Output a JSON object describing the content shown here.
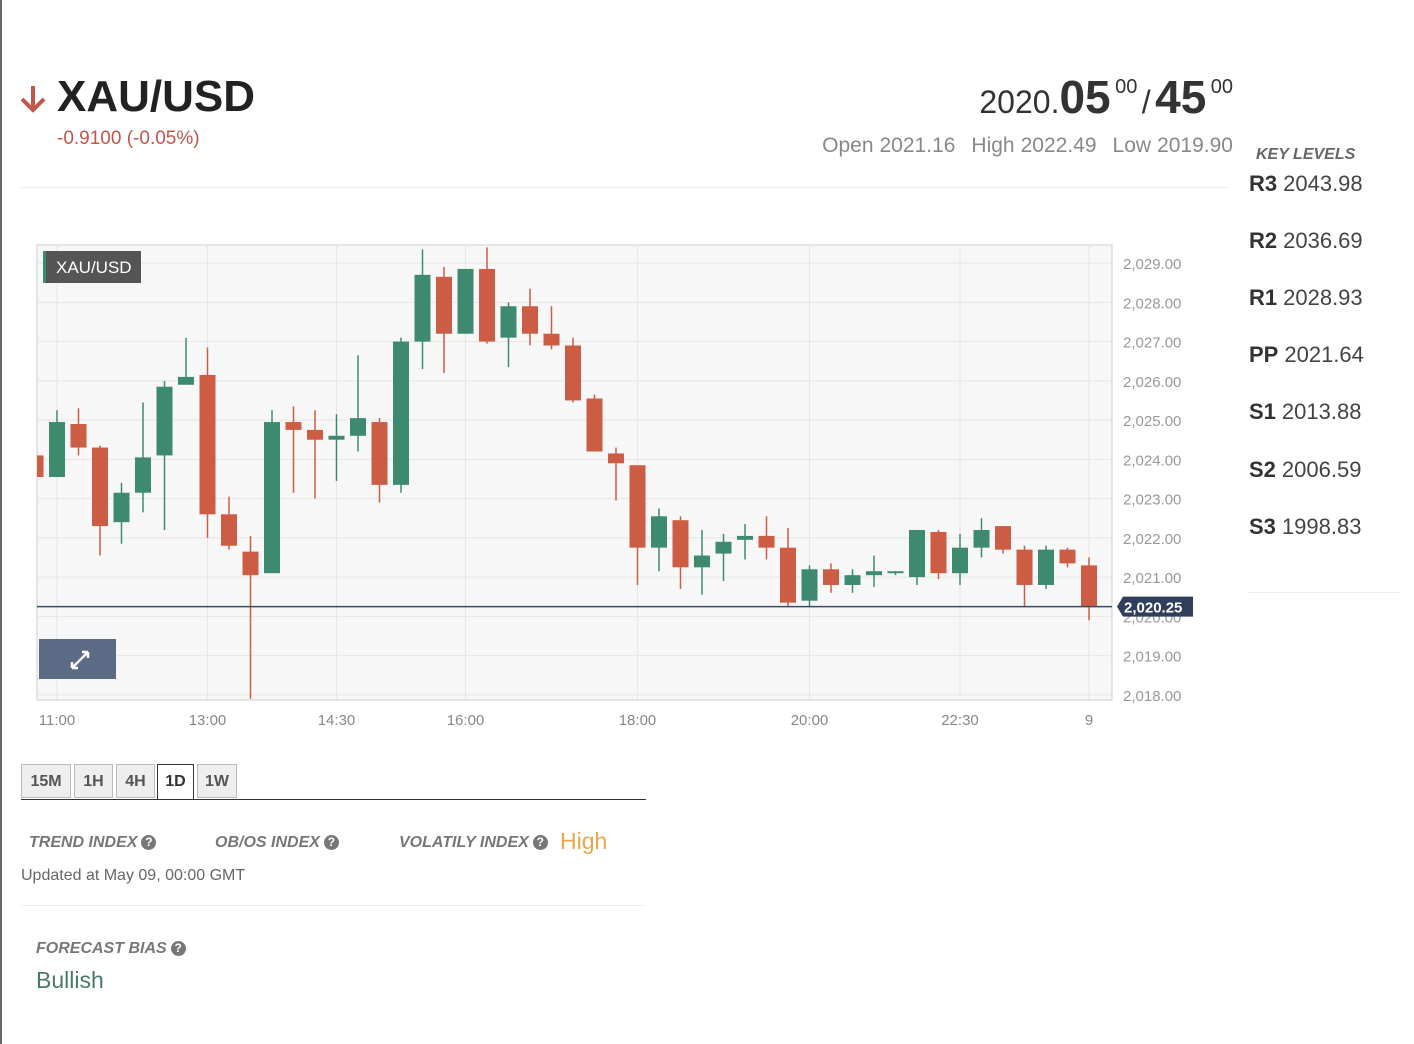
{
  "header": {
    "symbol": "XAU/USD",
    "change": "-0.9100 (-0.05%)",
    "price": {
      "big": "2020.",
      "bid": "05",
      "bid_sup": "00",
      "sep": "/",
      "ask": "45",
      "ask_sup": "00"
    },
    "ohl": [
      {
        "label": "Open",
        "value": "2021.16"
      },
      {
        "label": "High",
        "value": "2022.49"
      },
      {
        "label": "Low",
        "value": "2019.90"
      }
    ]
  },
  "key_levels": {
    "title": "KEY LEVELS",
    "levels": [
      {
        "name": "R3",
        "value": "2043.98"
      },
      {
        "name": "R2",
        "value": "2036.69"
      },
      {
        "name": "R1",
        "value": "2028.93"
      },
      {
        "name": "PP",
        "value": "2021.64"
      },
      {
        "name": "S1",
        "value": "2013.88"
      },
      {
        "name": "S2",
        "value": "2006.59"
      },
      {
        "name": "S3",
        "value": "1998.83"
      }
    ]
  },
  "tabs": [
    "15M",
    "1H",
    "4H",
    "1D",
    "1W"
  ],
  "active_tab": "1D",
  "indices": {
    "trend": "TREND INDEX",
    "obos": "OB/OS INDEX",
    "volatility": "VOLATILY INDEX",
    "volatility_value": "High",
    "updated": "Updated at May 09, 00:00 GMT"
  },
  "forecast": {
    "title": "FORECAST BIAS",
    "value": "Bullish"
  },
  "chart_data": {
    "type": "candlestick",
    "title": "XAU/USD",
    "categories": [
      null,
      "11:00",
      null,
      null,
      null,
      null,
      null,
      null,
      "13:00",
      null,
      null,
      null,
      null,
      null,
      "14:30",
      null,
      null,
      null,
      null,
      null,
      "16:00",
      null,
      null,
      null,
      null,
      null,
      null,
      null,
      "18:00",
      null,
      null,
      null,
      null,
      null,
      null,
      null,
      "20:00",
      null,
      null,
      null,
      null,
      null,
      null,
      "22:30",
      null,
      null,
      null,
      null,
      null,
      "9"
    ],
    "open": [
      2024.1,
      2023.55,
      2024.9,
      2024.3,
      2022.4,
      2023.15,
      2024.1,
      2025.9,
      2026.15,
      2022.6,
      2021.65,
      2021.1,
      2024.95,
      2024.75,
      2024.5,
      2024.6,
      2024.95,
      2023.35,
      2027.0,
      2028.65,
      2027.2,
      2028.85,
      2027.1,
      2027.9,
      2027.2,
      2026.9,
      2025.55,
      2024.15,
      2023.85,
      2021.75,
      2022.45,
      2021.25,
      2021.6,
      2021.95,
      2022.05,
      2021.75,
      2020.4,
      2021.2,
      2020.8,
      2021.05,
      2021.1,
      2021.0,
      2022.15,
      2021.1,
      2021.75,
      2022.3,
      2021.7,
      2020.8,
      2021.7,
      2021.3
    ],
    "high": [
      2025.5,
      2025.25,
      2025.3,
      2024.35,
      2023.4,
      2025.45,
      2026.0,
      2027.1,
      2026.85,
      2023.05,
      2022.05,
      2025.25,
      2025.35,
      2025.25,
      2025.15,
      2026.65,
      2025.05,
      2027.1,
      2029.35,
      2028.9,
      2028.85,
      2029.4,
      2028.0,
      2028.35,
      2027.9,
      2027.1,
      2025.65,
      2024.3,
      2023.85,
      2022.75,
      2022.55,
      2022.2,
      2022.1,
      2022.35,
      2022.55,
      2022.25,
      2021.3,
      2021.35,
      2021.2,
      2021.55,
      2021.15,
      2022.2,
      2022.2,
      2022.1,
      2022.5,
      2022.3,
      2021.8,
      2021.8,
      2021.75,
      2021.5
    ],
    "low": [
      2023.5,
      2023.55,
      2024.1,
      2021.55,
      2021.85,
      2022.65,
      2022.2,
      2025.9,
      2022.0,
      2021.7,
      2017.9,
      2021.1,
      2023.15,
      2023.0,
      2023.45,
      2024.2,
      2022.9,
      2023.15,
      2026.3,
      2026.2,
      2027.2,
      2026.95,
      2026.35,
      2026.9,
      2026.8,
      2025.45,
      2024.2,
      2022.95,
      2020.8,
      2021.15,
      2020.7,
      2020.55,
      2020.9,
      2021.45,
      2021.45,
      2020.25,
      2020.25,
      2020.6,
      2020.6,
      2020.75,
      2021.05,
      2020.8,
      2020.95,
      2020.8,
      2021.5,
      2021.6,
      2020.25,
      2020.7,
      2021.25,
      2019.9
    ],
    "close": [
      2023.55,
      2024.95,
      2024.3,
      2022.3,
      2023.15,
      2024.05,
      2025.85,
      2026.1,
      2022.6,
      2021.8,
      2021.05,
      2024.95,
      2024.75,
      2024.5,
      2024.6,
      2025.05,
      2023.35,
      2027.0,
      2028.7,
      2027.2,
      2028.85,
      2027.0,
      2027.9,
      2027.2,
      2026.9,
      2025.5,
      2024.2,
      2023.9,
      2021.75,
      2022.55,
      2021.25,
      2021.55,
      2021.9,
      2022.05,
      2021.75,
      2020.35,
      2021.2,
      2020.8,
      2021.05,
      2021.15,
      2021.15,
      2022.2,
      2021.1,
      2021.75,
      2022.2,
      2021.7,
      2020.8,
      2021.7,
      2021.35,
      2020.25
    ],
    "up_color": "#3e8a6f",
    "down_color": "#cd5c45",
    "ylim": [
      2017.87,
      2029.46
    ],
    "yticks": [
      {
        "value": 2018,
        "label": "2,018.00"
      },
      {
        "value": 2019,
        "label": "2,019.00"
      },
      {
        "value": 2020,
        "label": "2,020.00"
      },
      {
        "value": 2021,
        "label": "2,021.00"
      },
      {
        "value": 2022,
        "label": "2,022.00"
      },
      {
        "value": 2023,
        "label": "2,023.00"
      },
      {
        "value": 2024,
        "label": "2,024.00"
      },
      {
        "value": 2025,
        "label": "2,025.00"
      },
      {
        "value": 2026,
        "label": "2,026.00"
      },
      {
        "value": 2027,
        "label": "2,027.00"
      },
      {
        "value": 2028,
        "label": "2,028.00"
      },
      {
        "value": 2029,
        "label": "2,029.00"
      }
    ],
    "last_price": {
      "value": 2020.25,
      "label": "2,020.25"
    },
    "grid": true
  }
}
